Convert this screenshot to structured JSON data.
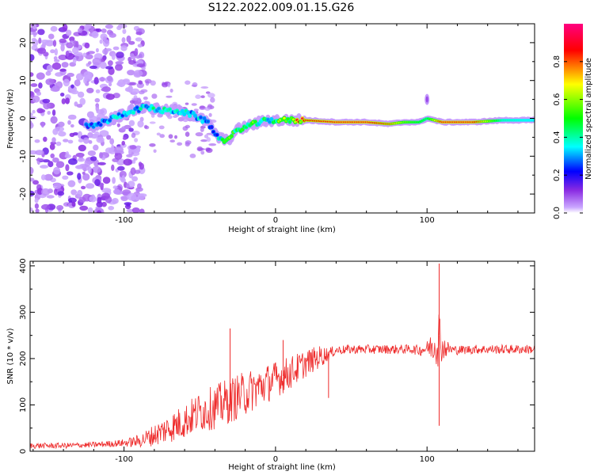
{
  "figure_title": "S122.2022.009.01.15.G26",
  "colors": {
    "snr_line": "#ee2b2b",
    "colormap": [
      "#ffffff",
      "#caa6ff",
      "#8a2be2",
      "#0000ff",
      "#00ffff",
      "#00ff00",
      "#ffff00",
      "#ff0000",
      "#ff00aa"
    ]
  },
  "chart_data": [
    {
      "type": "heatmap",
      "title": "",
      "xlabel": "Height of straight line (km)",
      "ylabel": "Frequency (Hz)",
      "xlim": [
        -162,
        171
      ],
      "ylim": [
        -25,
        25
      ],
      "xticks": [
        -100,
        0,
        100
      ],
      "yticks": [
        -20,
        -10,
        0,
        10,
        20
      ],
      "colorbar": {
        "label": "Normalized spectral amplitude",
        "range": [
          0,
          1
        ],
        "ticks": [
          0.0,
          0.2,
          0.4,
          0.6,
          0.8
        ]
      },
      "ridge": {
        "x": [
          -120,
          -95,
          -85,
          -75,
          -65,
          -55,
          -45,
          -38,
          -32,
          -25,
          -18,
          -10,
          -5,
          0,
          10,
          20,
          40,
          60,
          75,
          85,
          95,
          100,
          110,
          130,
          150,
          170
        ],
        "frequency": [
          -2,
          2,
          3,
          2,
          2,
          1,
          -1,
          -5,
          -6,
          -3,
          -2,
          -1,
          -0.5,
          -0.5,
          -0.5,
          -0.5,
          -1,
          -1,
          -1.5,
          -1,
          -1,
          0,
          -1,
          -1,
          -0.5,
          -0.5
        ],
        "amplitude": [
          0.3,
          0.35,
          0.4,
          0.4,
          0.35,
          0.35,
          0.3,
          0.35,
          0.5,
          0.55,
          0.6,
          0.5,
          0.45,
          0.5,
          0.7,
          0.85,
          0.9,
          0.9,
          0.8,
          0.6,
          0.5,
          0.45,
          0.9,
          0.9,
          0.4,
          0.35
        ]
      }
    },
    {
      "type": "line",
      "title": "",
      "xlabel": "Height of straight line (km)",
      "ylabel": "SNR (10 * v/v)",
      "xlim": [
        -162,
        171
      ],
      "ylim": [
        0,
        410
      ],
      "xticks": [
        -100,
        0,
        100
      ],
      "yticks": [
        0,
        100,
        200,
        300,
        400
      ],
      "series": [
        {
          "color": "#ee2b2b",
          "x": [
            -162,
            -140,
            -120,
            -100,
            -90,
            -80,
            -70,
            -60,
            -50,
            -40,
            -30,
            -20,
            -10,
            0,
            10,
            20,
            30,
            35,
            40,
            50,
            60,
            70,
            80,
            90,
            95,
            100,
            105,
            108,
            110,
            115,
            120,
            130,
            140,
            150,
            160,
            171
          ],
          "y": [
            12,
            12,
            14,
            18,
            22,
            35,
            50,
            65,
            85,
            95,
            110,
            125,
            140,
            155,
            170,
            190,
            205,
            210,
            218,
            220,
            220,
            220,
            220,
            220,
            218,
            222,
            230,
            250,
            225,
            220,
            218,
            220,
            220,
            220,
            220,
            220
          ],
          "spread": [
            6,
            6,
            6,
            8,
            14,
            24,
            32,
            38,
            44,
            48,
            50,
            48,
            44,
            40,
            36,
            30,
            24,
            14,
            10,
            10,
            10,
            10,
            10,
            10,
            12,
            16,
            40,
            70,
            30,
            12,
            10,
            10,
            10,
            10,
            10,
            10
          ]
        }
      ],
      "annotations": [
        {
          "x": -30,
          "y": 265
        },
        {
          "x": 5,
          "y": 240
        },
        {
          "x": 35,
          "y": 115
        },
        {
          "x": 108,
          "y": 405
        },
        {
          "x": 108,
          "y": 55
        }
      ]
    }
  ]
}
